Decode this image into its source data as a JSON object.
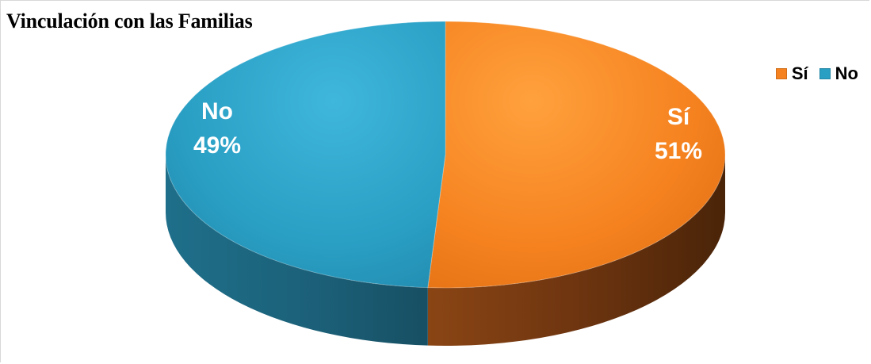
{
  "chart_data": {
    "type": "pie",
    "title": "Vinculación con las Familias",
    "categories": [
      "Sí",
      "No"
    ],
    "values": [
      51,
      49
    ],
    "value_labels": [
      "51%",
      "49%"
    ],
    "colors": [
      "#f5821f",
      "#2a9fc4"
    ],
    "legend_position": "top-right",
    "style": "3d"
  }
}
